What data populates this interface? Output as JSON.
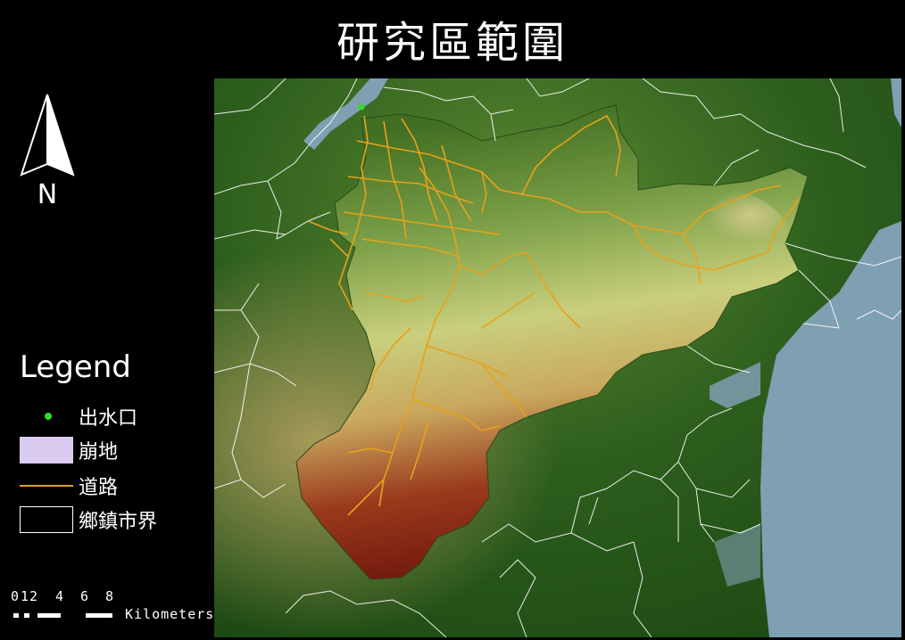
{
  "map": {
    "title": "研究區範圍",
    "north_arrow": {
      "icon": "north-arrow-icon",
      "label": "N"
    },
    "legend": {
      "title": "Legend",
      "items": [
        {
          "label": "出水口",
          "symbol": "point",
          "color": "#33dd22"
        },
        {
          "label": "崩地",
          "symbol": "fill",
          "color": "#d9ccf0"
        },
        {
          "label": "道路",
          "symbol": "line",
          "color": "#e8a21a"
        },
        {
          "label": "鄉鎮市界",
          "symbol": "outline",
          "color": "#ffffff"
        }
      ]
    },
    "scale_bar": {
      "tick_labels": [
        "0",
        "1",
        "2",
        "4",
        "6",
        "8"
      ],
      "unit": "Kilometers"
    },
    "colors": {
      "background": "#000000",
      "lowland": "#24531a",
      "mid": "#b9c96e",
      "high": "#7a1a0f",
      "sea": "#7f9fb2",
      "roads": "#e8a21a",
      "outlet": "#33dd22"
    }
  }
}
